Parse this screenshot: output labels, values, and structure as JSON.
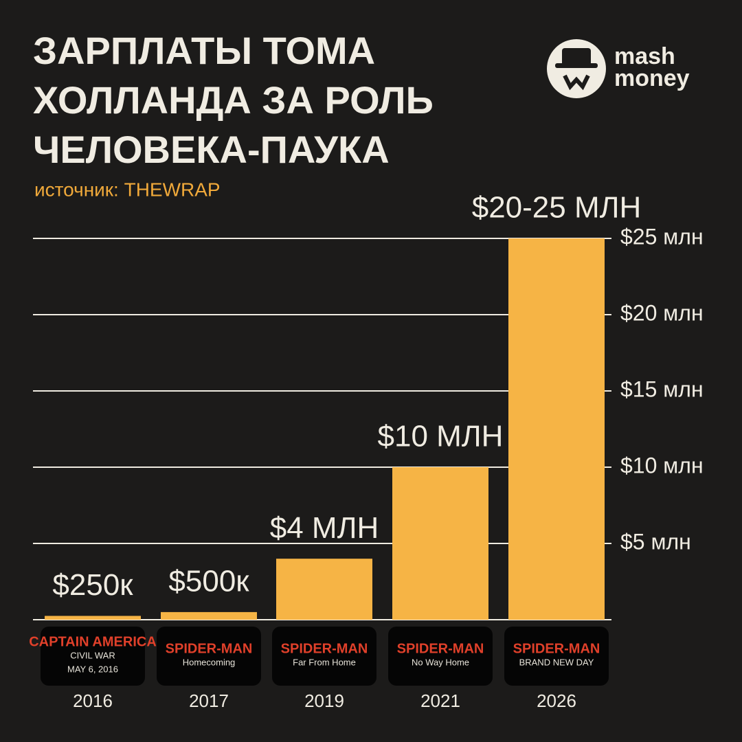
{
  "chart_data": {
    "type": "bar",
    "title": [
      "ЗАРПЛАТЫ ТОМА",
      "ХОЛЛАНДА ЗА РОЛЬ",
      "ЧЕЛОВЕКА-ПАУКА"
    ],
    "subtitle": "источник: THEWRAP",
    "categories": [
      "2016",
      "2017",
      "2019",
      "2021",
      "2026"
    ],
    "values": [
      0.25,
      0.5,
      4,
      10,
      25
    ],
    "value_labels": [
      "$250к",
      "$500к",
      "$4 МЛН",
      "$10 МЛН",
      "$20-25 МЛН"
    ],
    "color": "#f6b445",
    "ylim": [
      0,
      25
    ],
    "yticks": [
      {
        "value": 5,
        "label": "$5 млн"
      },
      {
        "value": 10,
        "label": "$10 млн"
      },
      {
        "value": 15,
        "label": "$15 млн"
      },
      {
        "value": 20,
        "label": "$20 млн"
      },
      {
        "value": 25,
        "label": "$25 млн"
      }
    ],
    "grid": true
  },
  "posters": [
    [
      "CAPTAIN AMERICA",
      "CIVIL WAR",
      "MAY 6, 2016"
    ],
    [
      "SPIDER-MAN",
      "Homecoming"
    ],
    [
      "SPIDER-MAN",
      "Far From Home"
    ],
    [
      "SPIDER-MAN",
      "No Way Home"
    ],
    [
      "SPIDER-MAN",
      "BRAND NEW DAY"
    ]
  ],
  "logo": [
    "mash",
    "money"
  ]
}
